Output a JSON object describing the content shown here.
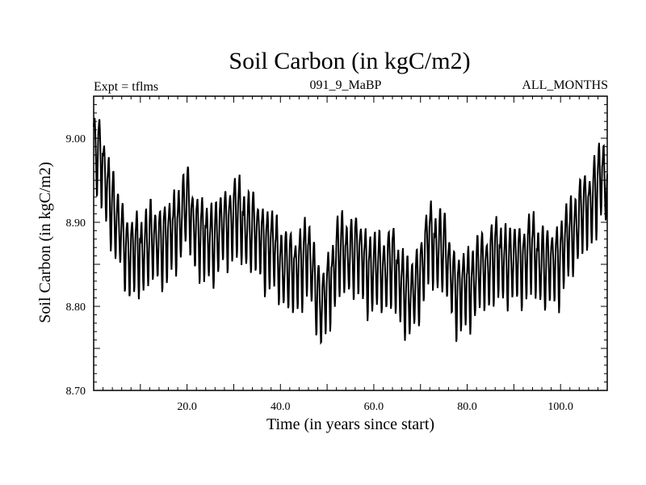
{
  "chart_data": {
    "type": "line",
    "title": "Soil Carbon (in kgC/m2)",
    "subtitle_left": "Expt = tflms",
    "subtitle_center": "091_9_MaBP",
    "subtitle_right": "ALL_MONTHS",
    "xlabel": "Time (in years since start)",
    "ylabel": "Soil Carbon (in kgC/m2)",
    "xlim": [
      0,
      110
    ],
    "ylim": [
      8.7,
      9.05
    ],
    "xticks": [
      20,
      40,
      60,
      80,
      100
    ],
    "xtick_labels": [
      "20.0",
      "40.0",
      "60.0",
      "80.0",
      "100.0"
    ],
    "yticks": [
      8.7,
      8.8,
      8.9,
      9.0
    ],
    "ytick_labels": [
      "8.70",
      "8.80",
      "8.90",
      "9.00"
    ],
    "grid": false,
    "samples_per_year": 12,
    "annual_amplitude": 0.045,
    "baseline_years": [
      0,
      2,
      5,
      8,
      12,
      16,
      20,
      23,
      26,
      30,
      34,
      38,
      42,
      46,
      49,
      52,
      56,
      60,
      64,
      68,
      72,
      75,
      78,
      82,
      86,
      90,
      94,
      97,
      100,
      103,
      106,
      109,
      110
    ],
    "baseline_values": [
      8.985,
      8.96,
      8.89,
      8.855,
      8.87,
      8.875,
      8.915,
      8.875,
      8.875,
      8.905,
      8.885,
      8.865,
      8.835,
      8.855,
      8.79,
      8.855,
      8.86,
      8.835,
      8.845,
      8.8,
      8.875,
      8.86,
      8.81,
      8.83,
      8.855,
      8.845,
      8.86,
      8.84,
      8.855,
      8.89,
      8.915,
      8.95,
      8.935
    ]
  }
}
